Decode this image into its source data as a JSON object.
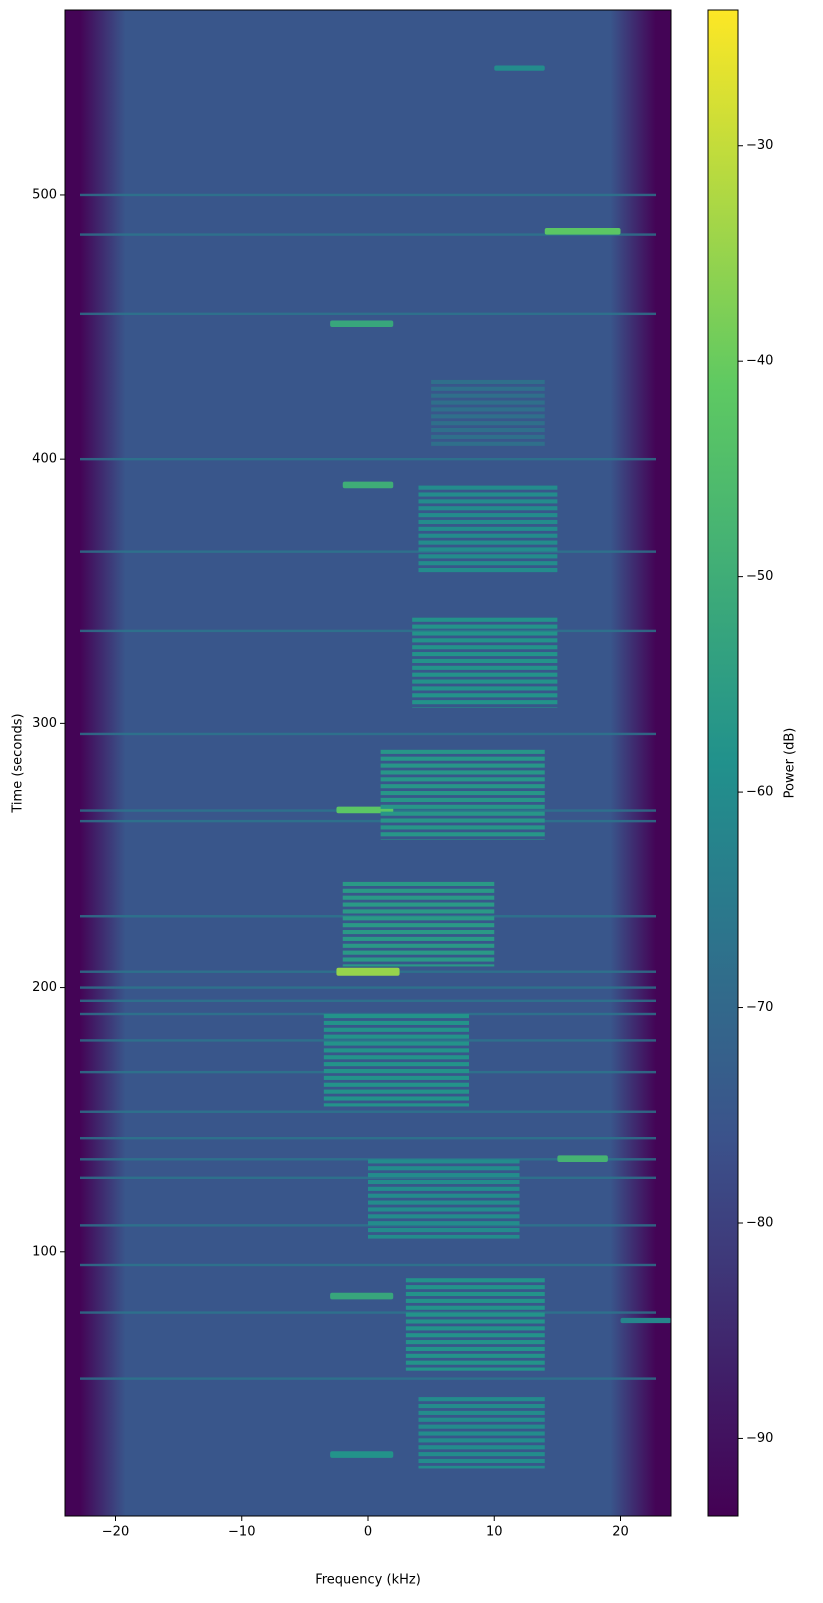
{
  "chart_data": {
    "type": "spectrogram",
    "xlabel": "Frequency (kHz)",
    "ylabel": "Time (seconds)",
    "colorbar_label": "Power (dB)",
    "colormap": "viridis",
    "xlim": [
      -24,
      24
    ],
    "xticks": [
      {
        "value": -20,
        "label": "−20"
      },
      {
        "value": -10,
        "label": "−10"
      },
      0,
      10,
      20
    ],
    "ylim": [
      0,
      570
    ],
    "yticks": [
      100,
      200,
      300,
      400,
      500
    ],
    "clim": [
      -93.6,
      -23.7
    ],
    "cticks": [
      {
        "value": -90,
        "label": "−90"
      },
      {
        "value": -80,
        "label": "−80"
      },
      {
        "value": -70,
        "label": "−70"
      },
      {
        "value": -60,
        "label": "−60"
      },
      {
        "value": -50,
        "label": "−50"
      },
      {
        "value": -40,
        "label": "−40"
      },
      {
        "value": -30,
        "label": "−30"
      }
    ],
    "background_power": -75,
    "edge_power": -93,
    "horizontal_lines": {
      "times": [
        500,
        485,
        455,
        400,
        365,
        335,
        296,
        267,
        263,
        227,
        206,
        200,
        195,
        190,
        180,
        168,
        153,
        143,
        135,
        128,
        110,
        95,
        77,
        52
      ],
      "power": -66
    },
    "bursts": [
      {
        "t0": 547,
        "t1": 549,
        "f0": 10,
        "f1": 14,
        "power": -60,
        "striped": false
      },
      {
        "t0": 485,
        "t1": 487.5,
        "f0": 14,
        "f1": 20,
        "power": -42,
        "striped": false
      },
      {
        "t0": 450,
        "t1": 452.5,
        "f0": -3,
        "f1": 2,
        "power": -52,
        "striped": false
      },
      {
        "t0": 389,
        "t1": 391.5,
        "f0": -2,
        "f1": 2,
        "power": -50,
        "striped": false
      },
      {
        "t0": 266,
        "t1": 268.5,
        "f0": -2.5,
        "f1": 2,
        "power": -42,
        "striped": false
      },
      {
        "t0": 204.5,
        "t1": 207.5,
        "f0": -2.5,
        "f1": 2.5,
        "power": -35,
        "striped": false
      },
      {
        "t0": 134,
        "t1": 136.5,
        "f0": 15,
        "f1": 19,
        "power": -48,
        "striped": false
      },
      {
        "t0": 82,
        "t1": 84.5,
        "f0": -3,
        "f1": 2,
        "power": -52,
        "striped": false
      },
      {
        "t0": 73,
        "t1": 75,
        "f0": 20,
        "f1": 24,
        "power": -62,
        "striped": false
      },
      {
        "t0": 22,
        "t1": 24.5,
        "f0": -3,
        "f1": 2,
        "power": -58,
        "striped": false
      },
      {
        "t0": 405,
        "t1": 430,
        "f0": 5,
        "f1": 14,
        "power": -68,
        "striped": true
      },
      {
        "t0": 357,
        "t1": 390,
        "f0": 4,
        "f1": 15,
        "power": -60,
        "striped": true
      },
      {
        "t0": 306,
        "t1": 340,
        "f0": 3.5,
        "f1": 15,
        "power": -58,
        "striped": true
      },
      {
        "t0": 256,
        "t1": 290,
        "f0": 1,
        "f1": 14,
        "power": -57,
        "striped": true
      },
      {
        "t0": 208,
        "t1": 240,
        "f0": -2,
        "f1": 10,
        "power": -56,
        "striped": true
      },
      {
        "t0": 155,
        "t1": 190,
        "f0": -3.5,
        "f1": 8,
        "power": -58,
        "striped": true
      },
      {
        "t0": 105,
        "t1": 135,
        "f0": 0,
        "f1": 12,
        "power": -60,
        "striped": true
      },
      {
        "t0": 55,
        "t1": 90,
        "f0": 3,
        "f1": 14,
        "power": -58,
        "striped": true
      },
      {
        "t0": 18,
        "t1": 45,
        "f0": 4,
        "f1": 14,
        "power": -60,
        "striped": true
      }
    ]
  }
}
